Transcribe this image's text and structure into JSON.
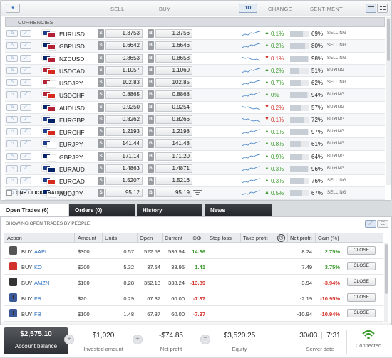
{
  "header": {
    "menu_icon": "dropdown-icon",
    "sell": "SELL",
    "buy": "BUY",
    "period": "1D",
    "change": "CHANGE",
    "sentiment": "SENTIMENT"
  },
  "group": {
    "toggle": "–",
    "label": "CURRENCIES"
  },
  "instruments": [
    {
      "symbol": "EURUSD",
      "sell": "1.3753",
      "buy": "1.3756",
      "dir": "up",
      "change": "0.1%",
      "pct": "69%",
      "sentiment": "SELLING",
      "flags": [
        "#1e3c8c",
        "#b22234"
      ]
    },
    {
      "symbol": "GBPUSD",
      "sell": "1.6642",
      "buy": "1.6646",
      "dir": "up",
      "change": "0.2%",
      "pct": "80%",
      "sentiment": "SELLING",
      "flags": [
        "#012169",
        "#b22234"
      ]
    },
    {
      "symbol": "NZDUSD",
      "sell": "0.8653",
      "buy": "0.8658",
      "dir": "down",
      "change": "0.1%",
      "pct": "98%",
      "sentiment": "SELLING",
      "flags": [
        "#012169",
        "#b22234"
      ]
    },
    {
      "symbol": "USDCAD",
      "sell": "1.1057",
      "buy": "1.1060",
      "dir": "up",
      "change": "0.2%",
      "pct": "51%",
      "sentiment": "BUYING",
      "flags": [
        "#b22234",
        "#d52b1e"
      ]
    },
    {
      "symbol": "USDJPY",
      "sell": "102.83",
      "buy": "102.85",
      "dir": "up",
      "change": "0.7%",
      "pct": "62%",
      "sentiment": "SELLING",
      "flags": [
        "#b22234",
        "#ffffff"
      ]
    },
    {
      "symbol": "USDCHF",
      "sell": "0.8865",
      "buy": "0.8868",
      "dir": "up",
      "change": "0%",
      "pct": "94%",
      "sentiment": "BUYING",
      "flags": [
        "#b22234",
        "#d52b1e"
      ]
    },
    {
      "symbol": "AUDUSD",
      "sell": "0.9250",
      "buy": "0.9254",
      "dir": "down",
      "change": "0.2%",
      "pct": "57%",
      "sentiment": "BUYING",
      "flags": [
        "#012169",
        "#b22234"
      ]
    },
    {
      "symbol": "EURGBP",
      "sell": "0.8262",
      "buy": "0.8266",
      "dir": "down",
      "change": "0.1%",
      "pct": "72%",
      "sentiment": "BUYING",
      "flags": [
        "#1e3c8c",
        "#012169"
      ]
    },
    {
      "symbol": "EURCHF",
      "sell": "1.2193",
      "buy": "1.2198",
      "dir": "up",
      "change": "0.1%",
      "pct": "97%",
      "sentiment": "BUYING",
      "flags": [
        "#1e3c8c",
        "#d52b1e"
      ]
    },
    {
      "symbol": "EURJPY",
      "sell": "141.44",
      "buy": "141.48",
      "dir": "up",
      "change": "0.8%",
      "pct": "61%",
      "sentiment": "BUYING",
      "flags": [
        "#1e3c8c",
        "#ffffff"
      ]
    },
    {
      "symbol": "GBPJPY",
      "sell": "171.14",
      "buy": "171.20",
      "dir": "up",
      "change": "0.9%",
      "pct": "64%",
      "sentiment": "BUYING",
      "flags": [
        "#012169",
        "#ffffff"
      ]
    },
    {
      "symbol": "EURAUD",
      "sell": "1.4863",
      "buy": "1.4871",
      "dir": "up",
      "change": "0.3%",
      "pct": "96%",
      "sentiment": "BUYING",
      "flags": [
        "#1e3c8c",
        "#012169"
      ]
    },
    {
      "symbol": "EURCAD",
      "sell": "1.5207",
      "buy": "1.5216",
      "dir": "up",
      "change": "0.3%",
      "pct": "76%",
      "sentiment": "SELLING",
      "flags": [
        "#1e3c8c",
        "#d52b1e"
      ]
    },
    {
      "symbol": "AUDJPY",
      "sell": "95.12",
      "buy": "95.19",
      "dir": "up",
      "change": "0.5%",
      "pct": "67%",
      "sentiment": "SELLING",
      "flags": [
        "#012169",
        "#ffffff"
      ]
    }
  ],
  "one_click": "ONE CLICK TRADING",
  "tabs": [
    "Open Trades (6)",
    "Orders (0)",
    "History",
    "News"
  ],
  "showing": "SHOWING OPEN TRADES BY PEOPLE",
  "trade_columns": {
    "action": "Action",
    "amount": "Amount",
    "units": "Units",
    "open": "Open",
    "current": "Current",
    "pips": "⊕⊕",
    "stop_loss": "Stop loss",
    "take_profit": "Take profit",
    "net_profit": "Net profit",
    "gain": "Gain (%)"
  },
  "trades": [
    {
      "action": "BUY",
      "ticker": "AAPL",
      "logo_color": "#555555",
      "logo": "",
      "amount": "$300",
      "units": "0.57",
      "open": "522.58",
      "current": "536.94",
      "pips": "14.36",
      "pips_dir": "up",
      "net": "8.24",
      "gain": "2.75%",
      "gain_dir": "up",
      "close": "CLOSE"
    },
    {
      "action": "BUY",
      "ticker": "KO",
      "logo_color": "#d2322c",
      "logo": "",
      "amount": "$200",
      "units": "5.32",
      "open": "37.54",
      "current": "38.95",
      "pips": "1.41",
      "pips_dir": "up",
      "net": "7.49",
      "gain": "3.75%",
      "gain_dir": "up",
      "close": "CLOSE"
    },
    {
      "action": "BUY",
      "ticker": "AMZN",
      "logo_color": "#333333",
      "logo": "a",
      "amount": "$100",
      "units": "0.28",
      "open": "352.13",
      "current": "338.24",
      "pips": "-13.89",
      "pips_dir": "down",
      "net": "-3.94",
      "gain": "-3.94%",
      "gain_dir": "down",
      "close": "CLOSE"
    },
    {
      "action": "BUY",
      "ticker": "FB",
      "logo_color": "#3b5998",
      "logo": "f",
      "amount": "$20",
      "units": "0.29",
      "open": "67.37",
      "current": "60.00",
      "pips": "-7.37",
      "pips_dir": "down",
      "net": "-2.19",
      "gain": "-10.95%",
      "gain_dir": "down",
      "close": "CLOSE"
    },
    {
      "action": "BUY",
      "ticker": "FB",
      "logo_color": "#3b5998",
      "logo": "f",
      "amount": "$100",
      "units": "1.48",
      "open": "67.37",
      "current": "60.00",
      "pips": "-7.37",
      "pips_dir": "down",
      "net": "-10.94",
      "gain": "-10.94%",
      "gain_dir": "down",
      "close": "CLOSE"
    }
  ],
  "footer": {
    "balance": {
      "value": "$2,575.10",
      "label": "Account balance"
    },
    "invested": {
      "value": "$1,020",
      "label": "Invested amount"
    },
    "net_profit": {
      "value": "-$74.85",
      "label": "Net profit"
    },
    "equity": {
      "value": "$3,520.25",
      "label": "Equity"
    },
    "server": {
      "date": "30/03",
      "time": "7:31",
      "label": "Server date"
    },
    "status": {
      "label": "Connected",
      "color": "#3a9a2c"
    }
  }
}
